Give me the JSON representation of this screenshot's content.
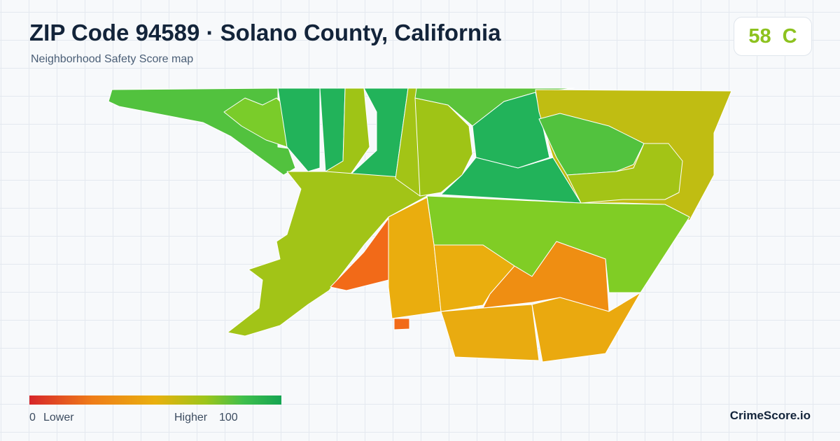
{
  "header": {
    "title": "ZIP Code 94589 · Solano County, California",
    "subtitle": "Neighborhood Safety Score map"
  },
  "score": {
    "value": 58,
    "grade": "C"
  },
  "legend": {
    "min": 0,
    "min_label": "Lower",
    "max_label": "Higher",
    "max": 100
  },
  "brand": "CrimeScore.io"
}
